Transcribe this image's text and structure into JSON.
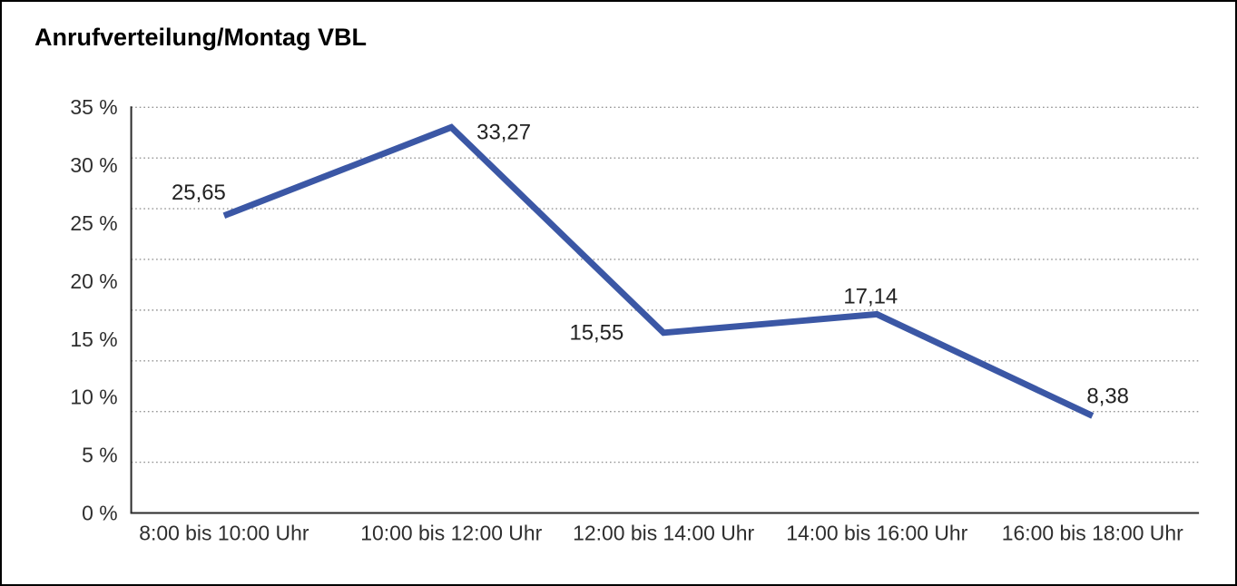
{
  "window": {
    "background": "#ffffff",
    "border_color": "#000000"
  },
  "chart_data": {
    "type": "line",
    "title": "Anrufverteilung/Montag VBL",
    "categories": [
      "8:00 bis 10:00 Uhr",
      "10:00 bis 12:00 Uhr",
      "12:00 bis 14:00 Uhr",
      "14:00 bis 16:00 Uhr",
      "16:00 bis 18:00 Uhr"
    ],
    "values": [
      25.65,
      33.27,
      15.55,
      17.14,
      8.38
    ],
    "value_labels": [
      "25,65",
      "33,27",
      "15,55",
      "17,14",
      "8,38"
    ],
    "xlabel": "",
    "ylabel": "",
    "ylim": [
      0,
      35
    ],
    "y_tick_labels": [
      "35 %",
      "30 %",
      "25 %",
      "20 %",
      "15 %",
      "10 %",
      "5 %",
      "0 %"
    ],
    "y_tick_values": [
      35,
      30,
      25,
      20,
      15,
      10,
      5,
      0
    ],
    "grid": "horizontal-dotted",
    "legend_position": "none",
    "line_color": "#3B57A5",
    "grid_color": "#949494",
    "axis_color": "#2b2b2b",
    "text_color": "#2e2e2e"
  }
}
